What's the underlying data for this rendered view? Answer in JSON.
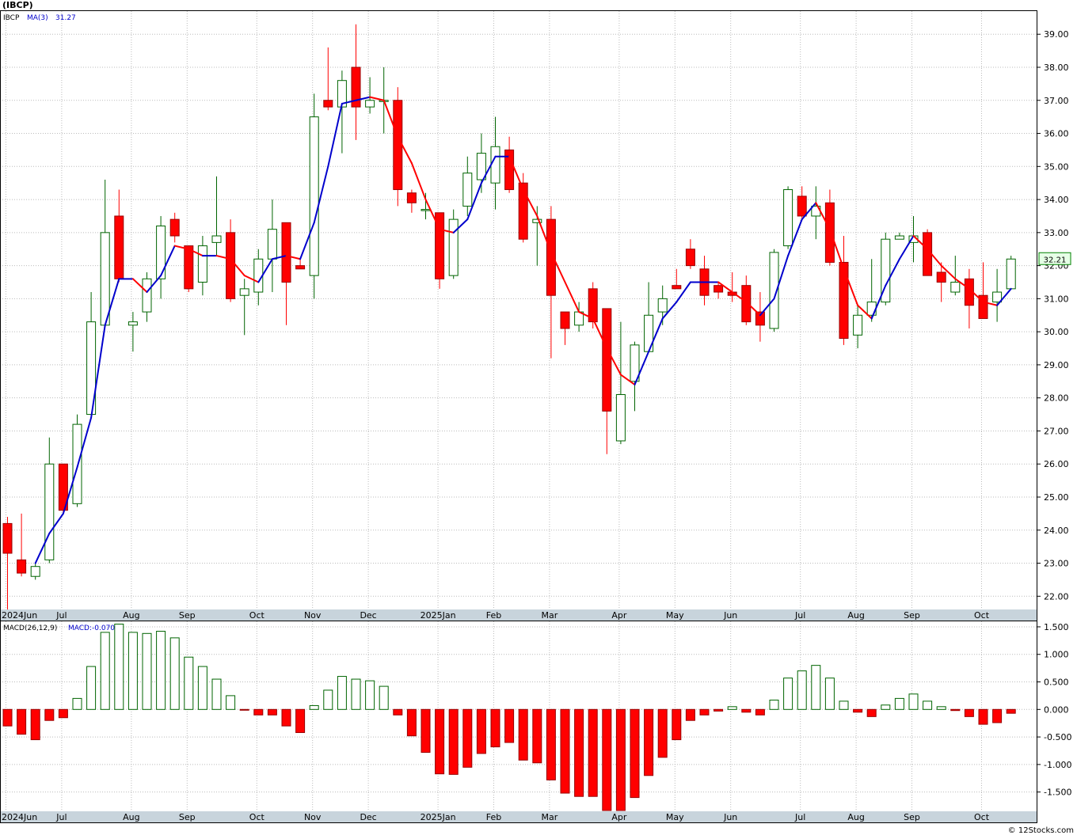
{
  "header": {
    "symbol": "(IBCP)"
  },
  "price_legend": {
    "symbol": "IBCP",
    "ma_label": "MA(3)",
    "ma_value": "31.27"
  },
  "last_price_tag": "32.21",
  "macd_legend": {
    "label": "MACD(26,12,9)",
    "value_label": "MACD:-0.070"
  },
  "watermark": "© 12Stocks.com",
  "colors": {
    "up": "#006400",
    "down": "#ff0000",
    "ma_rising": "#0000cc",
    "ma_falling": "#ff0000",
    "grid": "#bbbbbb",
    "axis_bar": "#c8d4dc",
    "tag_border": "#008000"
  },
  "chart_data": [
    {
      "type": "candlestick",
      "series": "IBCP weekly",
      "ylim": [
        21.6,
        39.7
      ],
      "y_ticks": [
        22,
        23,
        24,
        25,
        26,
        27,
        28,
        29,
        30,
        31,
        32,
        33,
        34,
        35,
        36,
        37,
        38,
        39
      ],
      "y_tick_labels": [
        "22.00",
        "23.00",
        "24.00",
        "25.00",
        "26.00",
        "27.00",
        "28.00",
        "29.00",
        "30.00",
        "31.00",
        "32.00",
        "33.00",
        "34.00",
        "35.00",
        "36.00",
        "37.00",
        "38.00",
        "39.00"
      ],
      "x_labels": [
        "2024Jun",
        "Jul",
        "Aug",
        "Sep",
        "Oct",
        "Nov",
        "Dec",
        "2025Jan",
        "Feb",
        "Mar",
        "Apr",
        "May",
        "Jun",
        "Jul",
        "Aug",
        "Sep",
        "Oct"
      ],
      "x_label_weeks": [
        0,
        4,
        9,
        13,
        18,
        22,
        26,
        31,
        35,
        39,
        44,
        48,
        52,
        57,
        61,
        65,
        70
      ],
      "grid": true,
      "ohlc": [
        [
          24.2,
          24.4,
          21.6,
          23.3
        ],
        [
          23.1,
          24.5,
          22.6,
          22.7
        ],
        [
          22.6,
          23.0,
          22.5,
          22.9
        ],
        [
          23.1,
          26.8,
          23.0,
          26.0
        ],
        [
          26.0,
          26.0,
          24.5,
          24.6
        ],
        [
          24.8,
          27.5,
          24.7,
          27.2
        ],
        [
          27.5,
          31.2,
          27.4,
          30.3
        ],
        [
          30.2,
          34.6,
          30.2,
          33.0
        ],
        [
          33.5,
          34.3,
          31.5,
          31.6
        ],
        [
          30.2,
          30.6,
          29.4,
          30.3
        ],
        [
          30.6,
          31.8,
          30.3,
          31.6
        ],
        [
          31.6,
          33.5,
          31.0,
          33.2
        ],
        [
          33.4,
          33.6,
          32.7,
          32.9
        ],
        [
          32.6,
          32.6,
          31.2,
          31.3
        ],
        [
          31.5,
          32.9,
          31.1,
          32.6
        ],
        [
          32.7,
          34.7,
          32.3,
          32.9
        ],
        [
          33.0,
          33.4,
          30.9,
          31.0
        ],
        [
          31.1,
          31.6,
          29.9,
          31.3
        ],
        [
          31.2,
          32.5,
          30.8,
          32.2
        ],
        [
          32.2,
          34.0,
          31.2,
          33.1
        ],
        [
          33.3,
          33.3,
          30.2,
          31.5
        ],
        [
          32.0,
          32.2,
          31.9,
          31.9
        ],
        [
          31.7,
          37.2,
          31.0,
          36.5
        ],
        [
          37.0,
          38.6,
          36.7,
          36.8
        ],
        [
          36.8,
          37.9,
          35.4,
          37.6
        ],
        [
          38.0,
          39.3,
          35.8,
          36.8
        ],
        [
          36.8,
          37.7,
          36.6,
          37.0
        ],
        [
          37.0,
          38.0,
          36.0,
          37.0
        ],
        [
          37.0,
          37.4,
          33.8,
          34.3
        ],
        [
          34.2,
          34.3,
          33.6,
          33.9
        ],
        [
          33.7,
          34.2,
          33.4,
          33.7
        ],
        [
          33.6,
          33.6,
          31.3,
          31.6
        ],
        [
          31.7,
          33.7,
          31.6,
          33.4
        ],
        [
          33.8,
          35.3,
          33.5,
          34.8
        ],
        [
          34.6,
          36.0,
          34.2,
          35.4
        ],
        [
          34.5,
          36.5,
          33.7,
          35.6
        ],
        [
          35.5,
          35.9,
          34.2,
          34.3
        ],
        [
          34.5,
          34.8,
          32.7,
          32.8
        ],
        [
          33.3,
          33.8,
          32.0,
          33.4
        ],
        [
          33.4,
          33.8,
          29.2,
          31.1
        ],
        [
          30.6,
          30.6,
          29.6,
          30.1
        ],
        [
          30.2,
          30.9,
          30.0,
          30.6
        ],
        [
          31.3,
          31.5,
          30.1,
          30.3
        ],
        [
          30.7,
          30.7,
          26.3,
          27.6
        ],
        [
          26.7,
          30.3,
          26.6,
          28.1
        ],
        [
          28.5,
          29.7,
          27.6,
          29.6
        ],
        [
          29.4,
          31.5,
          29.4,
          30.5
        ],
        [
          30.6,
          31.4,
          30.2,
          31.0
        ],
        [
          31.4,
          31.9,
          31.3,
          31.3
        ],
        [
          32.5,
          32.8,
          31.9,
          32.0
        ],
        [
          31.9,
          32.3,
          30.8,
          31.1
        ],
        [
          31.4,
          31.5,
          31.0,
          31.2
        ],
        [
          31.2,
          31.8,
          30.9,
          31.1
        ],
        [
          31.4,
          31.7,
          30.2,
          30.3
        ],
        [
          30.6,
          31.2,
          29.7,
          30.2
        ],
        [
          30.1,
          32.5,
          30.0,
          32.4
        ],
        [
          32.6,
          34.4,
          32.5,
          34.3
        ],
        [
          34.1,
          34.4,
          33.4,
          33.5
        ],
        [
          33.5,
          34.4,
          32.8,
          33.8
        ],
        [
          33.9,
          34.3,
          32.0,
          32.1
        ],
        [
          32.1,
          32.9,
          29.6,
          29.8
        ],
        [
          29.9,
          30.8,
          29.5,
          30.5
        ],
        [
          30.5,
          32.2,
          30.3,
          30.9
        ],
        [
          30.9,
          33.0,
          30.8,
          32.8
        ],
        [
          32.8,
          33.0,
          32.8,
          32.9
        ],
        [
          32.7,
          33.5,
          32.1,
          32.9
        ],
        [
          33.0,
          33.1,
          31.7,
          31.7
        ],
        [
          31.8,
          32.1,
          30.9,
          31.5
        ],
        [
          31.2,
          32.3,
          31.1,
          31.5
        ],
        [
          31.6,
          31.9,
          30.1,
          30.8
        ],
        [
          31.1,
          32.1,
          30.4,
          30.4
        ],
        [
          30.9,
          31.9,
          30.3,
          31.2
        ],
        [
          31.3,
          32.3,
          31.3,
          32.2
        ]
      ],
      "ma3": [
        null,
        null,
        23.0,
        23.9,
        24.5,
        25.9,
        27.4,
        30.2,
        31.6,
        31.6,
        31.2,
        31.7,
        32.6,
        32.5,
        32.3,
        32.3,
        32.2,
        31.7,
        31.5,
        32.2,
        32.3,
        32.2,
        33.3,
        35.0,
        36.9,
        37.0,
        37.1,
        37.0,
        35.9,
        35.1,
        34.0,
        33.1,
        33.0,
        33.4,
        34.5,
        35.3,
        35.3,
        34.3,
        33.5,
        32.4,
        31.5,
        30.6,
        30.4,
        29.5,
        28.7,
        28.4,
        29.4,
        30.4,
        30.9,
        31.5,
        31.5,
        31.5,
        31.2,
        30.9,
        30.5,
        31.0,
        32.3,
        33.4,
        33.9,
        33.1,
        31.9,
        30.8,
        30.4,
        31.4,
        32.2,
        32.9,
        32.5,
        32.0,
        31.6,
        31.3,
        30.9,
        30.8,
        31.3
      ],
      "ma_last_reading": "31.27"
    },
    {
      "type": "bar",
      "series": "MACD(26,12,9) histogram",
      "ylim": [
        -1.85,
        1.6
      ],
      "y_ticks": [
        -1.5,
        -1.0,
        -0.5,
        0.0,
        0.5,
        1.0,
        1.5
      ],
      "y_tick_labels": [
        "-1.500",
        "-1.000",
        "-0.500",
        "0.000",
        "0.500",
        "1.000",
        "1.500"
      ],
      "x_labels": [
        "2024Jun",
        "Jul",
        "Aug",
        "Sep",
        "Oct",
        "Nov",
        "Dec",
        "2025Jan",
        "Feb",
        "Mar",
        "Apr",
        "May",
        "Jun",
        "Jul",
        "Aug",
        "Sep",
        "Oct"
      ],
      "x_label_weeks": [
        0,
        4,
        9,
        13,
        18,
        22,
        26,
        31,
        35,
        39,
        44,
        48,
        52,
        57,
        61,
        65,
        70
      ],
      "grid": true,
      "values": [
        -0.3,
        -0.45,
        -0.55,
        -0.2,
        -0.15,
        0.2,
        0.78,
        1.4,
        1.55,
        1.4,
        1.38,
        1.42,
        1.3,
        0.95,
        0.78,
        0.55,
        0.25,
        -0.01,
        -0.1,
        -0.1,
        -0.3,
        -0.42,
        0.07,
        0.35,
        0.6,
        0.55,
        0.52,
        0.42,
        -0.1,
        -0.48,
        -0.78,
        -1.17,
        -1.18,
        -1.05,
        -0.8,
        -0.68,
        -0.6,
        -0.92,
        -0.97,
        -1.28,
        -1.52,
        -1.58,
        -1.58,
        -1.85,
        -1.85,
        -1.6,
        -1.2,
        -0.87,
        -0.55,
        -0.2,
        -0.1,
        -0.03,
        0.05,
        -0.05,
        -0.1,
        0.17,
        0.57,
        0.7,
        0.8,
        0.57,
        0.15,
        -0.05,
        -0.13,
        0.08,
        0.2,
        0.28,
        0.15,
        0.05,
        -0.02,
        -0.13,
        -0.27,
        -0.24,
        -0.07
      ]
    }
  ]
}
